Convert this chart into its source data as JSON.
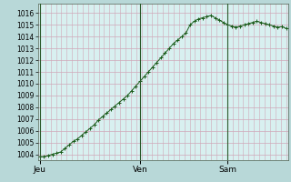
{
  "background_color": "#b8d8d8",
  "plot_bg_color": "#d8f0f0",
  "grid_color_h": "#d0a8b8",
  "grid_color_v": "#d0a8b8",
  "line_color": "#1a5c1a",
  "marker_color": "#1a5c1a",
  "ylim": [
    1003.5,
    1016.8
  ],
  "yticks": [
    1004,
    1005,
    1006,
    1007,
    1008,
    1009,
    1010,
    1011,
    1012,
    1013,
    1014,
    1015,
    1016
  ],
  "xtick_labels": [
    "Jeu",
    "Ven",
    "Sam"
  ],
  "xtick_positions": [
    0,
    24,
    45
  ],
  "ylabel_fontsize": 5.5,
  "xlabel_fontsize": 6.5,
  "values": [
    1003.8,
    1003.8,
    1003.9,
    1004.0,
    1004.1,
    1004.2,
    1004.5,
    1004.8,
    1005.1,
    1005.3,
    1005.6,
    1005.9,
    1006.2,
    1006.5,
    1006.9,
    1007.2,
    1007.5,
    1007.8,
    1008.1,
    1008.4,
    1008.7,
    1009.0,
    1009.4,
    1009.8,
    1010.2,
    1010.6,
    1011.0,
    1011.4,
    1011.8,
    1012.2,
    1012.6,
    1013.0,
    1013.4,
    1013.7,
    1014.0,
    1014.3,
    1015.0,
    1015.3,
    1015.5,
    1015.6,
    1015.7,
    1015.8,
    1015.6,
    1015.4,
    1015.2,
    1015.0,
    1014.9,
    1014.8,
    1014.9,
    1015.0,
    1015.1,
    1015.2,
    1015.3,
    1015.2,
    1015.1,
    1015.0,
    1014.9,
    1014.8,
    1014.85,
    1014.7
  ],
  "n_points": 60,
  "jeu_x": 0,
  "ven_x": 24,
  "sam_x": 45
}
